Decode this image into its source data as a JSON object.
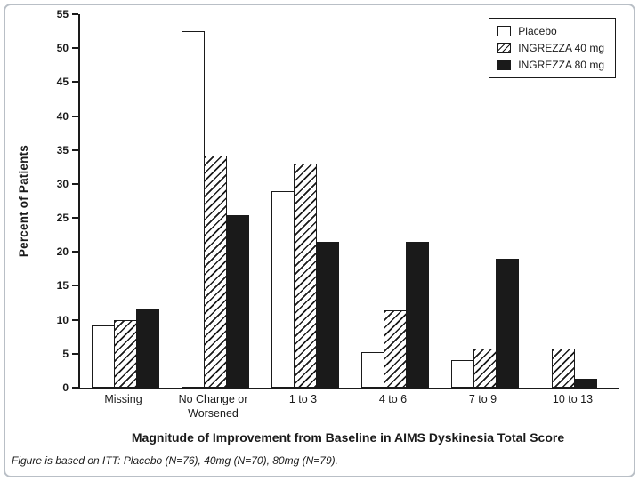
{
  "chart_data": {
    "type": "bar",
    "title": "",
    "categories": [
      "Missing",
      "No Change or\nWorsened",
      "1 to 3",
      "4 to 6",
      "7 to 9",
      "10 to 13"
    ],
    "series": [
      {
        "name": "Placebo",
        "pattern": "white",
        "values": [
          9.2,
          52.5,
          29.0,
          5.3,
          4.0,
          0
        ]
      },
      {
        "name": "INGREZZA 40 mg",
        "pattern": "hatch",
        "values": [
          10.0,
          34.2,
          33.0,
          11.4,
          5.7,
          5.7
        ]
      },
      {
        "name": "INGREZZA 80 mg",
        "pattern": "solid",
        "values": [
          11.5,
          25.4,
          21.5,
          21.5,
          19.0,
          1.3
        ]
      }
    ],
    "xlabel": "Magnitude of Improvement from Baseline in AIMS Dyskinesia Total Score",
    "ylabel": "Percent of Patients",
    "ylim": [
      0,
      55
    ],
    "ytick_step": 5,
    "legend_position": "top-right",
    "grid": false,
    "footnote": "Figure is based on ITT: Placebo (N=76), 40mg (N=70), 80mg (N=79)."
  },
  "colors": {
    "bar_fill": "#1a1a1a",
    "bar_outline": "#1a1a1a",
    "frame_border": "#b9bfc6"
  }
}
